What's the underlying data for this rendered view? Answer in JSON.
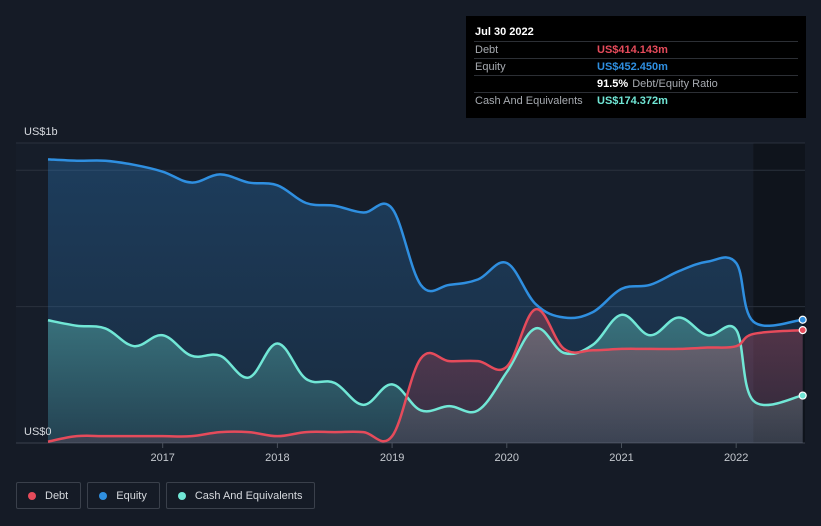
{
  "chart_data": {
    "type": "area",
    "y_top_label": "US$1b",
    "y_bottom_label": "US$0",
    "ylim": [
      0,
      1100
    ],
    "xlim": [
      2016.0,
      2022.6
    ],
    "x_ticks": [
      {
        "label": "2017",
        "x": 2017.0
      },
      {
        "label": "2018",
        "x": 2018.0
      },
      {
        "label": "2019",
        "x": 2019.0
      },
      {
        "label": "2020",
        "x": 2020.0
      },
      {
        "label": "2021",
        "x": 2021.0
      },
      {
        "label": "2022",
        "x": 2022.0
      }
    ],
    "series": [
      {
        "name": "Equity",
        "color": "#2f8fe0",
        "points": [
          [
            2016.0,
            1040
          ],
          [
            2016.25,
            1035
          ],
          [
            2016.5,
            1035
          ],
          [
            2016.75,
            1020
          ],
          [
            2017.0,
            995
          ],
          [
            2017.25,
            955
          ],
          [
            2017.5,
            985
          ],
          [
            2017.75,
            955
          ],
          [
            2018.0,
            945
          ],
          [
            2018.25,
            880
          ],
          [
            2018.5,
            870
          ],
          [
            2018.75,
            845
          ],
          [
            2019.0,
            860
          ],
          [
            2019.25,
            580
          ],
          [
            2019.5,
            580
          ],
          [
            2019.75,
            600
          ],
          [
            2020.0,
            660
          ],
          [
            2020.25,
            510
          ],
          [
            2020.5,
            460
          ],
          [
            2020.75,
            480
          ],
          [
            2021.0,
            565
          ],
          [
            2021.25,
            580
          ],
          [
            2021.5,
            630
          ],
          [
            2021.75,
            665
          ],
          [
            2022.0,
            660
          ],
          [
            2022.15,
            445
          ],
          [
            2022.58,
            452
          ]
        ]
      },
      {
        "name": "Cash And Equivalents",
        "color": "#71e7d6",
        "points": [
          [
            2016.0,
            450
          ],
          [
            2016.25,
            430
          ],
          [
            2016.5,
            420
          ],
          [
            2016.75,
            355
          ],
          [
            2017.0,
            395
          ],
          [
            2017.25,
            320
          ],
          [
            2017.5,
            320
          ],
          [
            2017.75,
            240
          ],
          [
            2018.0,
            365
          ],
          [
            2018.25,
            235
          ],
          [
            2018.5,
            220
          ],
          [
            2018.75,
            140
          ],
          [
            2019.0,
            215
          ],
          [
            2019.25,
            120
          ],
          [
            2019.5,
            135
          ],
          [
            2019.75,
            120
          ],
          [
            2020.0,
            260
          ],
          [
            2020.25,
            420
          ],
          [
            2020.5,
            330
          ],
          [
            2020.75,
            360
          ],
          [
            2021.0,
            470
          ],
          [
            2021.25,
            395
          ],
          [
            2021.5,
            460
          ],
          [
            2021.75,
            395
          ],
          [
            2022.0,
            415
          ],
          [
            2022.15,
            155
          ],
          [
            2022.58,
            174
          ]
        ]
      },
      {
        "name": "Debt",
        "color": "#e64b5b",
        "points": [
          [
            2016.0,
            5
          ],
          [
            2016.25,
            25
          ],
          [
            2016.5,
            25
          ],
          [
            2016.75,
            25
          ],
          [
            2017.0,
            25
          ],
          [
            2017.25,
            25
          ],
          [
            2017.5,
            40
          ],
          [
            2017.75,
            40
          ],
          [
            2018.0,
            25
          ],
          [
            2018.25,
            40
          ],
          [
            2018.5,
            40
          ],
          [
            2018.75,
            40
          ],
          [
            2019.0,
            25
          ],
          [
            2019.25,
            310
          ],
          [
            2019.5,
            300
          ],
          [
            2019.75,
            300
          ],
          [
            2020.0,
            280
          ],
          [
            2020.25,
            490
          ],
          [
            2020.5,
            345
          ],
          [
            2020.75,
            340
          ],
          [
            2021.0,
            345
          ],
          [
            2021.25,
            345
          ],
          [
            2021.5,
            345
          ],
          [
            2021.75,
            350
          ],
          [
            2022.0,
            355
          ],
          [
            2022.15,
            400
          ],
          [
            2022.58,
            414
          ]
        ]
      }
    ]
  },
  "tooltip": {
    "date": "Jul 30 2022",
    "rows": [
      {
        "label": "Debt",
        "value": "US$414.143m",
        "color": "#e64b5b",
        "suffix": ""
      },
      {
        "label": "Equity",
        "value": "US$452.450m",
        "color": "#2f8fe0",
        "suffix": ""
      },
      {
        "label": "",
        "value": "91.5%",
        "color": "#ffffff",
        "suffix": "Debt/Equity Ratio"
      },
      {
        "label": "Cash And Equivalents",
        "value": "US$174.372m",
        "color": "#71e7d6",
        "suffix": ""
      }
    ]
  },
  "legend": [
    {
      "label": "Debt",
      "color": "#e64b5b"
    },
    {
      "label": "Equity",
      "color": "#2f8fe0"
    },
    {
      "label": "Cash And Equivalents",
      "color": "#71e7d6"
    }
  ]
}
